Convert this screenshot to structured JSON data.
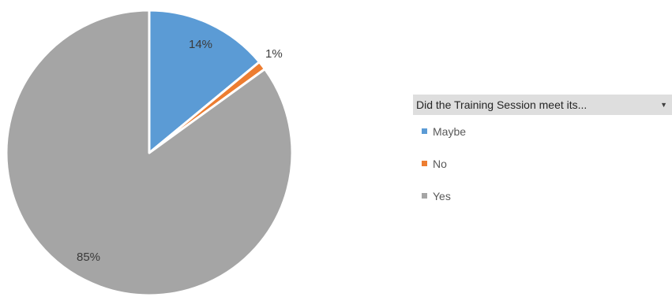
{
  "chart_data": {
    "type": "pie",
    "title": "",
    "legend_title": "Did the Training Session meet its...",
    "legend_position": "right",
    "slices": [
      {
        "label": "Maybe",
        "value": 14,
        "data_label": "14%",
        "color": "#5b9bd5"
      },
      {
        "label": "No",
        "value": 1,
        "data_label": "1%",
        "color": "#ed7d31"
      },
      {
        "label": "Yes",
        "value": 85,
        "data_label": "85%",
        "color": "#a5a5a5"
      }
    ]
  },
  "icons": {
    "legend_dropdown": "dropdown-arrow-icon"
  }
}
